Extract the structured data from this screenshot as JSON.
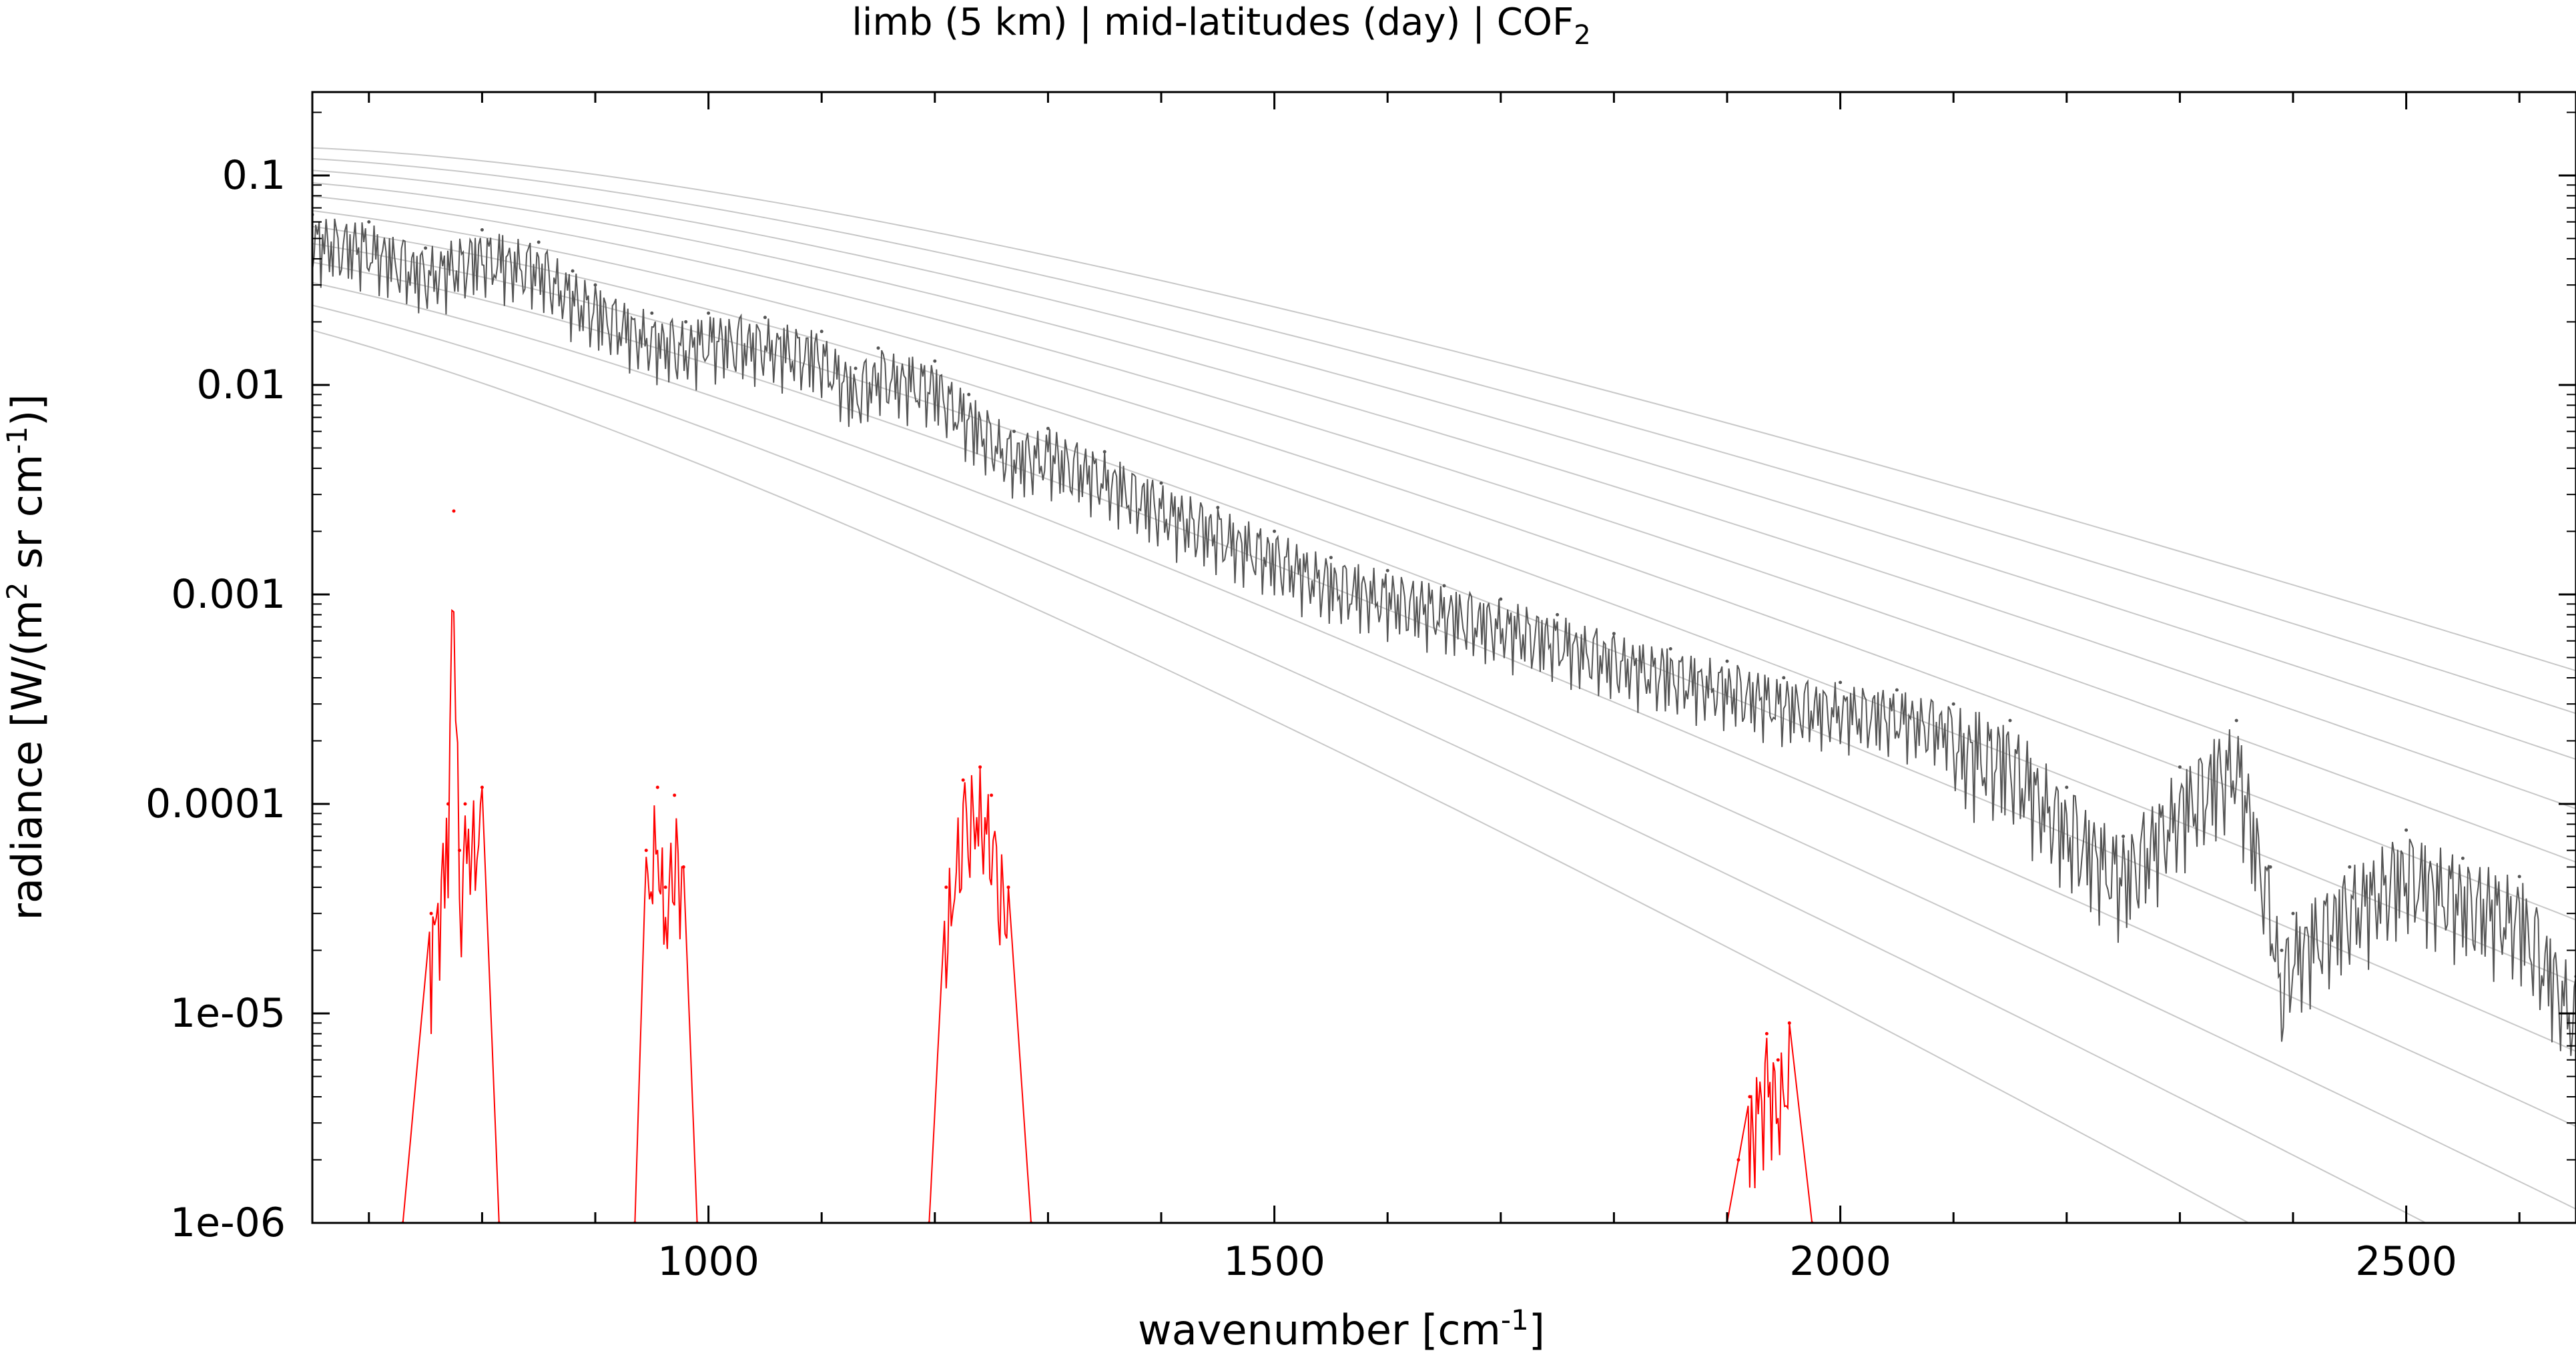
{
  "chart_data": {
    "type": "line",
    "title_parts": [
      "limb (5 km) | mid-latitudes (day) | COF",
      "2"
    ],
    "xlabel_parts": [
      "wavenumber [cm",
      "-1",
      "]"
    ],
    "ylabel_parts": [
      "radiance [W/(m",
      "2",
      " sr cm",
      "-1",
      ")]"
    ],
    "xlim": [
      650,
      2650
    ],
    "ylim": [
      1e-06,
      0.25
    ],
    "y_scale": "log",
    "x_ticks": [
      1000,
      1500,
      2000,
      2500
    ],
    "x_tick_labels": [
      "1000",
      "1500",
      "2000",
      "2500"
    ],
    "y_ticks": [
      1e-06,
      1e-05,
      0.0001,
      0.001,
      0.01,
      0.1
    ],
    "y_tick_labels": [
      "1e-06",
      "1e-05",
      "0.0001",
      "0.001",
      "0.01",
      "0.1"
    ],
    "grid": false,
    "legend": "none",
    "colors": {
      "total_radiance": "#555555",
      "cof2_contribution": "#ff0000",
      "planck_reference": "#c8c8c8",
      "axes": "#000000"
    },
    "planck_reference_temperatures_K": [
      180,
      190,
      200,
      210,
      220,
      230,
      240,
      250,
      260,
      270,
      280,
      290
    ],
    "series": [
      {
        "id": "total_radiance",
        "x": [
          650,
          700,
          750,
          800,
          850,
          880,
          900,
          950,
          980,
          1000,
          1050,
          1100,
          1130,
          1150,
          1200,
          1230,
          1270,
          1300,
          1350,
          1400,
          1450,
          1500,
          1550,
          1600,
          1650,
          1700,
          1750,
          1800,
          1850,
          1900,
          1950,
          2000,
          2050,
          2100,
          2150,
          2200,
          2250,
          2300,
          2350,
          2380,
          2390,
          2400,
          2450,
          2500,
          2550,
          2600,
          2650
        ],
        "y": [
          0.065,
          0.06,
          0.045,
          0.055,
          0.048,
          0.035,
          0.03,
          0.022,
          0.02,
          0.022,
          0.021,
          0.018,
          0.012,
          0.015,
          0.013,
          0.009,
          0.006,
          0.0062,
          0.0048,
          0.0034,
          0.0026,
          0.002,
          0.0015,
          0.0013,
          0.0011,
          0.00095,
          0.0008,
          0.00065,
          0.00055,
          0.00048,
          0.0004,
          0.00038,
          0.00035,
          0.0003,
          0.00025,
          0.00012,
          7e-05,
          0.00015,
          0.00025,
          5e-05,
          2e-05,
          3e-05,
          5e-05,
          7.5e-05,
          5.5e-05,
          4.5e-05,
          1.5e-05
        ]
      },
      {
        "id": "cof2_contribution",
        "x": [
          730,
          755,
          770,
          775,
          780,
          785,
          800,
          815,
          935,
          945,
          955,
          962,
          970,
          978,
          990,
          1195,
          1210,
          1225,
          1240,
          1250,
          1265,
          1285,
          1900,
          1910,
          1920,
          1935,
          1945,
          1955,
          1975
        ],
        "y": [
          1e-06,
          3e-05,
          0.0001,
          0.0025,
          6e-05,
          0.0001,
          0.00012,
          1e-06,
          1e-06,
          6e-05,
          0.00012,
          4e-05,
          0.00011,
          5e-05,
          1e-06,
          1e-06,
          4e-05,
          0.00013,
          0.00015,
          0.00011,
          4e-05,
          1e-06,
          1e-06,
          2e-06,
          4e-06,
          8e-06,
          6e-06,
          9e-06,
          1e-06
        ]
      }
    ]
  }
}
